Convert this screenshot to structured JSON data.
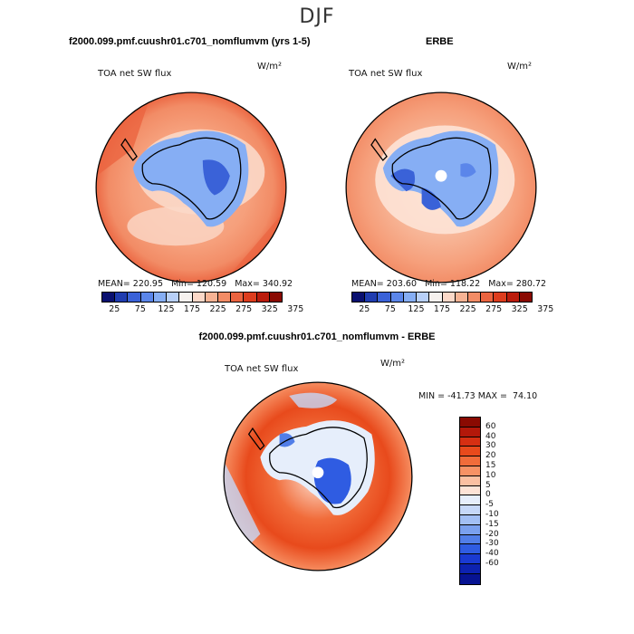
{
  "main_title": "DJF",
  "panels": {
    "model": {
      "case_title": "f2000.099.pmf.cuushr01.c701_nomflumvm (yrs 1-5)",
      "var_label": "TOA net SW flux",
      "units": "W/m²",
      "stats": "MEAN= 220.95   Min= 120.59   Max= 340.92"
    },
    "obs": {
      "case_title": "ERBE",
      "var_label": "TOA net SW flux",
      "units": "W/m²",
      "stats": "MEAN= 203.60   Min= 118.22   Max= 280.72"
    },
    "diff": {
      "case_title": "f2000.099.pmf.cuushr01.c701_nomflumvm - ERBE",
      "var_label": "TOA net SW flux",
      "units": "W/m²",
      "stats": "MIN = -41.73 MAX =  74.10"
    }
  },
  "colorbar_main": {
    "colors": [
      "#0a1070",
      "#1f3cb0",
      "#3a62d8",
      "#5b86ea",
      "#86aef4",
      "#b8d0f8",
      "#f6f1ee",
      "#fbd8c8",
      "#f7b394",
      "#f28c66",
      "#eb6440",
      "#dd3d1e",
      "#bb1c0c",
      "#8a0a02"
    ],
    "tick_labels": [
      "25",
      "75",
      "125",
      "175",
      "225",
      "275",
      "325",
      "375"
    ]
  },
  "colorbar_diff": {
    "colors": [
      "#8a0a02",
      "#b3180a",
      "#d62f12",
      "#e84a1c",
      "#f16c3a",
      "#f79265",
      "#fbc0a2",
      "#fde3d6",
      "#e6eefb",
      "#c6d8f8",
      "#a2bff4",
      "#7aa0ee",
      "#517ee8",
      "#2f5ce2",
      "#1a3ad2",
      "#0d22b0",
      "#071392"
    ],
    "tick_labels": [
      "60",
      "40",
      "30",
      "20",
      "15",
      "10",
      "5",
      "0",
      "-5",
      "-10",
      "-15",
      "-20",
      "-30",
      "-40",
      "-60"
    ]
  }
}
